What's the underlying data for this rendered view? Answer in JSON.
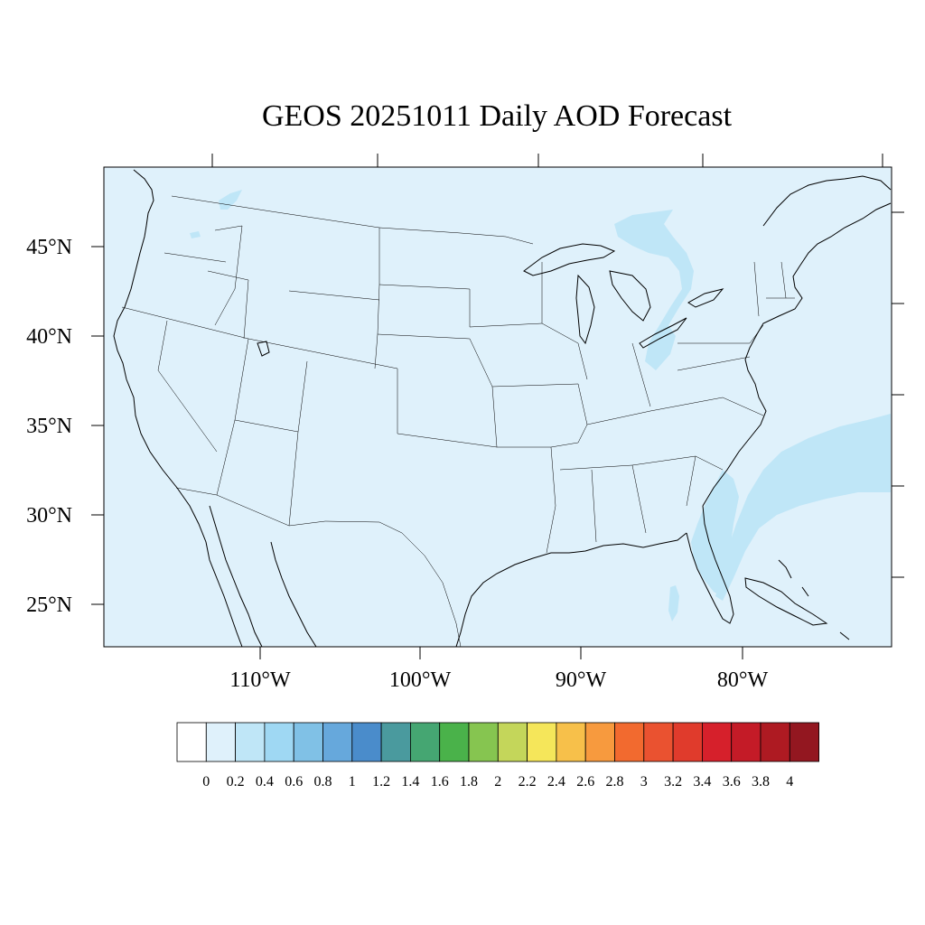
{
  "title": "GEOS 20251011 Daily AOD Forecast",
  "map": {
    "background_color": "#dff1fb",
    "plume_color": "#bfe6f7",
    "lat_labels": [
      "45°N",
      "40°N",
      "35°N",
      "30°N",
      "25°N"
    ],
    "lon_labels": [
      "110°W",
      "100°W",
      "90°W",
      "80°W"
    ]
  },
  "colorbar": {
    "labels": [
      "0",
      "0.2",
      "0.4",
      "0.6",
      "0.8",
      "1",
      "1.2",
      "1.4",
      "1.6",
      "1.8",
      "2",
      "2.2",
      "2.4",
      "2.6",
      "2.8",
      "3",
      "3.2",
      "3.4",
      "3.6",
      "3.8",
      "4"
    ],
    "colors": [
      "#ffffff",
      "#dff1fb",
      "#bfe6f7",
      "#9fd8f3",
      "#80c1e6",
      "#66a8dc",
      "#4a8ccb",
      "#4a9a9e",
      "#45a672",
      "#4ab24a",
      "#86c550",
      "#c4d65a",
      "#f5e65a",
      "#f7c04a",
      "#f79a3e",
      "#f26a2f",
      "#ea5230",
      "#e03b2c",
      "#d6202b",
      "#c41b27",
      "#ae1a22",
      "#931720"
    ]
  }
}
